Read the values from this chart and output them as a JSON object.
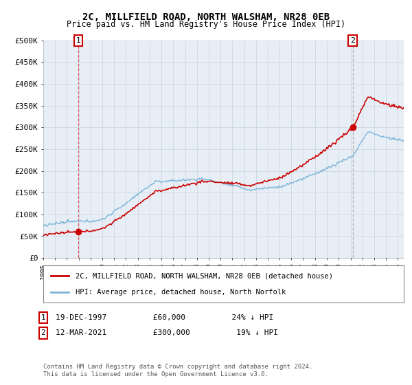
{
  "title": "2C, MILLFIELD ROAD, NORTH WALSHAM, NR28 0EB",
  "subtitle": "Price paid vs. HM Land Registry's House Price Index (HPI)",
  "ylim": [
    0,
    500000
  ],
  "yticks": [
    0,
    50000,
    100000,
    150000,
    200000,
    250000,
    300000,
    350000,
    400000,
    450000,
    500000
  ],
  "ytick_labels": [
    "£0",
    "£50K",
    "£100K",
    "£150K",
    "£200K",
    "£250K",
    "£300K",
    "£350K",
    "£400K",
    "£450K",
    "£500K"
  ],
  "sale1_date_num": 1997.97,
  "sale1_price": 60000,
  "sale1_label": "1",
  "sale2_date_num": 2021.19,
  "sale2_price": 300000,
  "sale2_label": "2",
  "hpi_color": "#7ab4d8",
  "price_color": "#cc0000",
  "sale1_vline_color": "#dd4444",
  "sale2_vline_color": "#aaaaaa",
  "annotation_box_color": "#cc0000",
  "chart_bg_color": "#e8eef5",
  "legend_label_price": "2C, MILLFIELD ROAD, NORTH WALSHAM, NR28 0EB (detached house)",
  "legend_label_hpi": "HPI: Average price, detached house, North Norfolk",
  "note1_box": "1",
  "note1_text": "19-DEC-1997          £60,000          24% ↓ HPI",
  "note2_box": "2",
  "note2_text": "12-MAR-2021          £300,000          19% ↓ HPI",
  "footer": "Contains HM Land Registry data © Crown copyright and database right 2024.\nThis data is licensed under the Open Government Licence v3.0.",
  "bg_color": "#ffffff",
  "grid_color": "#c8d4e0"
}
